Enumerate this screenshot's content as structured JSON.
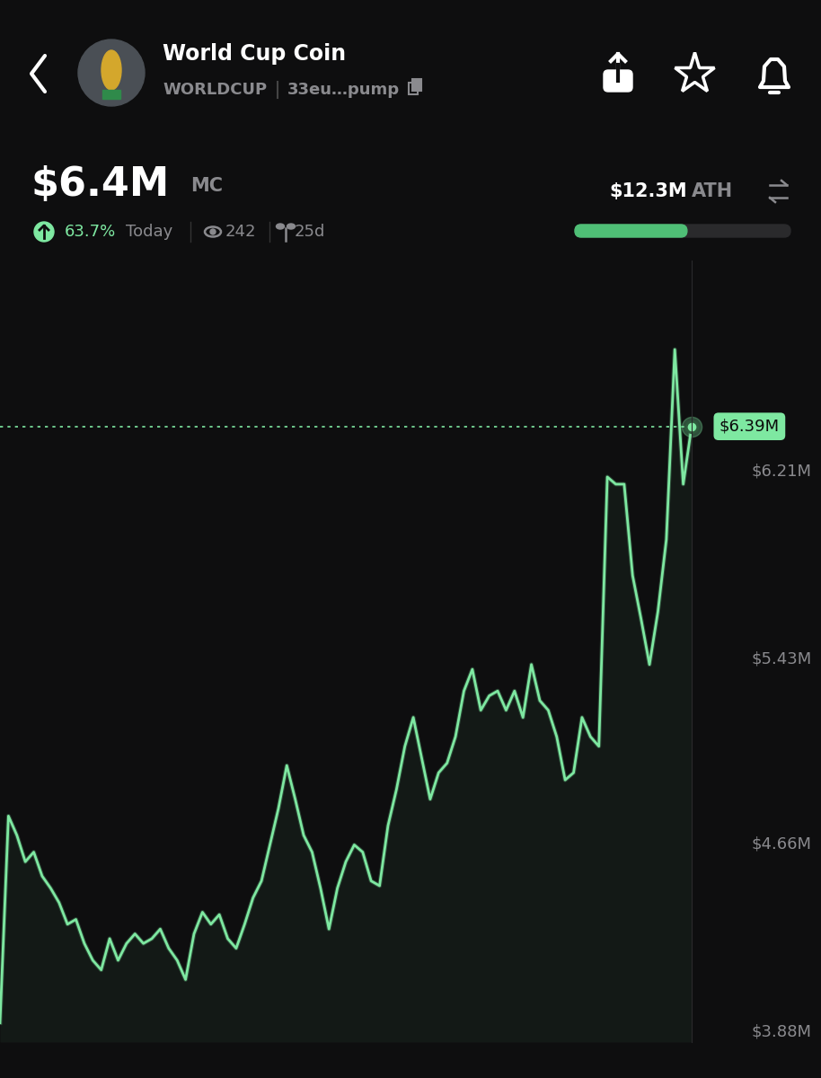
{
  "header": {
    "name": "World Cup Coin",
    "symbol": "WORLDCUP",
    "address": "33eu…pump",
    "market_cap": "$6.4M",
    "market_cap_label": "MC",
    "change": "63.7%",
    "change_period": "Today",
    "views": "242",
    "age": "25d",
    "ath": "$12.3M",
    "ath_label": "ATH"
  },
  "chart_data": {
    "type": "line",
    "color": "#7ee8a1",
    "tick_labels": "y",
    "grid": false,
    "values": [
      3.91,
      4.77,
      4.69,
      4.58,
      4.62,
      4.52,
      4.47,
      4.41,
      4.32,
      4.34,
      4.24,
      4.17,
      4.13,
      4.26,
      4.17,
      4.24,
      4.28,
      4.24,
      4.26,
      4.3,
      4.22,
      4.17,
      4.09,
      4.28,
      4.37,
      4.32,
      4.36,
      4.26,
      4.22,
      4.32,
      4.43,
      4.5,
      4.65,
      4.8,
      4.98,
      4.84,
      4.69,
      4.62,
      4.47,
      4.3,
      4.47,
      4.58,
      4.65,
      4.62,
      4.5,
      4.48,
      4.73,
      4.88,
      5.06,
      5.18,
      5.01,
      4.84,
      4.95,
      4.99,
      5.1,
      5.29,
      5.38,
      5.21,
      5.27,
      5.29,
      5.21,
      5.29,
      5.18,
      5.4,
      5.25,
      5.21,
      5.1,
      4.92,
      4.95,
      5.18,
      5.1,
      5.06,
      6.18,
      6.15,
      6.15,
      5.77,
      5.59,
      5.4,
      5.62,
      5.92,
      6.71,
      6.15,
      6.39
    ],
    "ylim": [
      3.83,
      7.08
    ],
    "yticks": [
      {
        "value": 3.88,
        "label": "$3.88M"
      },
      {
        "value": 4.66,
        "label": "$4.66M"
      },
      {
        "value": 5.43,
        "label": "$5.43M"
      },
      {
        "value": 6.21,
        "label": "$6.21M"
      }
    ],
    "annotations": [
      {
        "value": 6.39,
        "label": "$6.39M"
      }
    ]
  }
}
